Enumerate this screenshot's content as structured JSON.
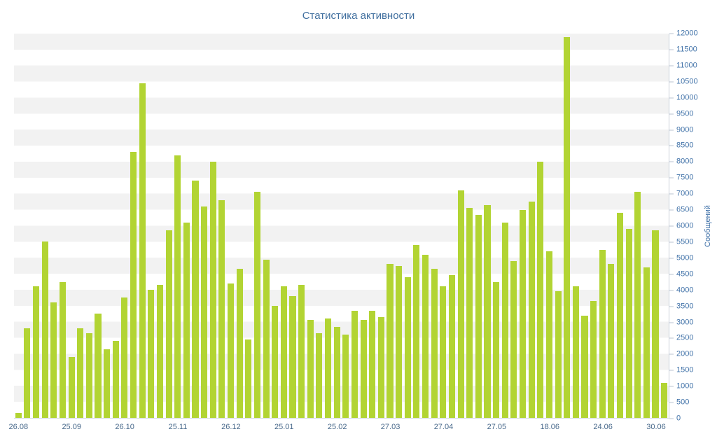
{
  "chart_data": {
    "type": "bar",
    "title": "Статистика активности",
    "ylabel": "Сообщений",
    "xlabel": "",
    "ylim": [
      0,
      12000
    ],
    "y_tick_step": 500,
    "legend": false,
    "grid": "horizontal-stripes",
    "bar_color": "#b2d433",
    "x_tick_labels": [
      "26.08",
      "25.09",
      "26.10",
      "25.11",
      "26.12",
      "25.01",
      "25.02",
      "27.03",
      "27.04",
      "27.05",
      "18.06",
      "24.06",
      "30.06"
    ],
    "x_label_every_n_bars": 6,
    "values": [
      150,
      2800,
      4100,
      5500,
      3600,
      4250,
      1900,
      2800,
      2650,
      3250,
      2150,
      2400,
      3750,
      8300,
      10450,
      4000,
      4150,
      5850,
      8200,
      6100,
      7400,
      6600,
      8000,
      6800,
      4200,
      4650,
      2450,
      7050,
      4950,
      3500,
      4100,
      3800,
      4150,
      3050,
      2650,
      3100,
      2850,
      2600,
      3350,
      3050,
      3350,
      3150,
      4800,
      4750,
      4400,
      5400,
      5100,
      4650,
      4100,
      4450,
      7100,
      6550,
      6350,
      6650,
      4250,
      6100,
      4900,
      6500,
      6750,
      8000,
      5200,
      3950,
      11900,
      4100,
      3200,
      3650,
      5250,
      4800,
      6400,
      5900,
      7050,
      4700,
      5850,
      1100
    ]
  },
  "colors": {
    "bar": "#b2d433",
    "title": "#3f6e9e",
    "y_axis_text": "#4273a9",
    "x_axis_text": "#47688a",
    "stripe": "#f2f2f2",
    "axis_line": "#c9d0da"
  }
}
